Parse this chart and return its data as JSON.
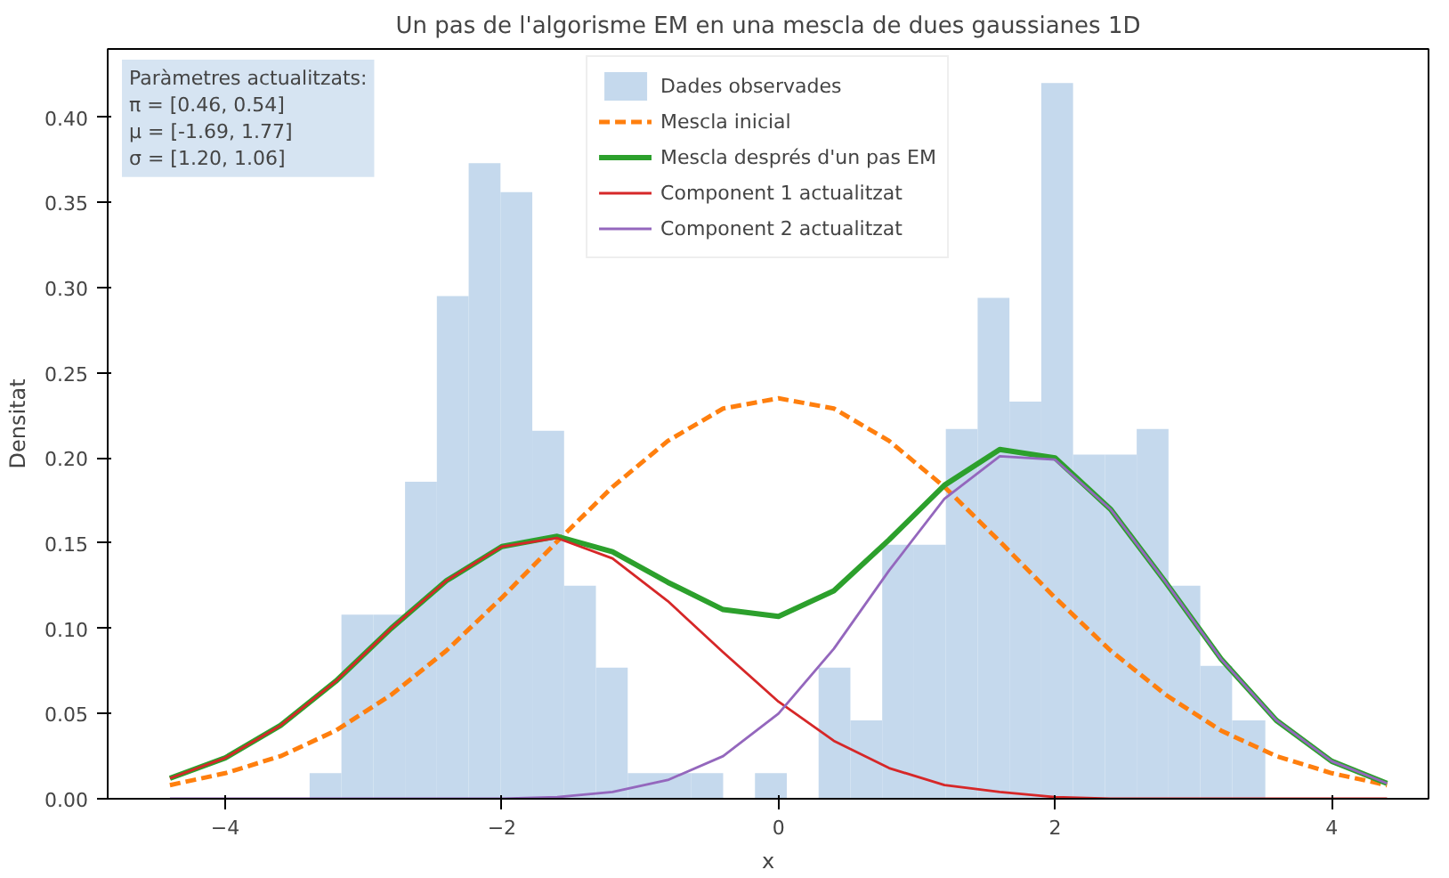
{
  "chart_data": {
    "type": "histogram",
    "title": "Un pas de l'algorisme EM en una mescla de dues gaussianes 1D",
    "xlabel": "x",
    "ylabel": "Densitat",
    "annotations": [
      "Paràmetres actualitzats:\nπ = [0.46, 0.54]\nμ = [-1.69, 1.77]\nσ = [1.20, 1.06]"
    ],
    "xlim": [
      -4.85,
      4.7
    ],
    "ylim": [
      0,
      0.44
    ],
    "xticks": [
      {
        "value": -4,
        "label": "−4"
      },
      {
        "value": -2,
        "label": "−2"
      },
      0,
      2,
      4
    ],
    "yticks": [
      {
        "value": 0,
        "label": "0.00"
      },
      0.05,
      {
        "value": 0.1,
        "label": "0.10"
      },
      0.15,
      {
        "value": 0.2,
        "label": "0.20"
      },
      0.25,
      {
        "value": 0.3,
        "label": "0.30"
      },
      0.35,
      {
        "value": 0.4,
        "label": "0.40"
      }
    ],
    "grid": false,
    "legend": "top",
    "series": [
      {
        "name": "Dades observades",
        "color": "#c5d9ed",
        "bins": [
          -3.39,
          -3.16,
          -2.93,
          -2.7,
          -2.47,
          -2.24,
          -2.01,
          -1.78,
          -1.55,
          -1.32,
          -1.09,
          -0.86,
          -0.63,
          -0.4,
          -0.17,
          0.06,
          0.29,
          0.52,
          0.75,
          0.98,
          1.21,
          1.44,
          1.67,
          1.9,
          2.13,
          2.36,
          2.59,
          2.82,
          3.05,
          3.28,
          3.52
        ],
        "values": [
          0.015,
          0.108,
          0.108,
          0.186,
          0.295,
          0.373,
          0.356,
          0.216,
          0.125,
          0.077,
          0.015,
          0.015,
          0.015,
          0,
          0.015,
          0,
          0.077,
          0.046,
          0.149,
          0.149,
          0.217,
          0.294,
          0.233,
          0.42,
          0.202,
          0.202,
          0.217,
          0.125,
          0.078,
          0.046
        ]
      },
      {
        "type": "line",
        "name": "Mescla inicial",
        "color": "#ff7f0e",
        "line_style": "dashed",
        "x": [
          -4.4,
          -4.0,
          -3.6,
          -3.2,
          -2.8,
          -2.4,
          -2.0,
          -1.6,
          -1.2,
          -0.8,
          -0.4,
          0,
          0.4,
          0.8,
          1.2,
          1.6,
          2.0,
          2.4,
          2.8,
          3.2,
          3.6,
          4.0,
          4.4
        ],
        "values": [
          0.008,
          0.015,
          0.025,
          0.04,
          0.061,
          0.087,
          0.118,
          0.151,
          0.183,
          0.21,
          0.229,
          0.235,
          0.229,
          0.21,
          0.183,
          0.151,
          0.118,
          0.087,
          0.061,
          0.04,
          0.025,
          0.015,
          0.008
        ]
      },
      {
        "type": "line",
        "name": "Mescla després d'un pas EM",
        "color": "#2ca02c",
        "line_style": "solid",
        "x": [
          -4.4,
          -4.0,
          -3.6,
          -3.2,
          -2.8,
          -2.4,
          -2.0,
          -1.6,
          -1.2,
          -0.8,
          -0.4,
          0,
          0.4,
          0.8,
          1.2,
          1.6,
          2.0,
          2.4,
          2.8,
          3.2,
          3.6,
          4.0,
          4.4
        ],
        "values": [
          0.012,
          0.024,
          0.043,
          0.069,
          0.1,
          0.128,
          0.148,
          0.154,
          0.145,
          0.127,
          0.111,
          0.107,
          0.122,
          0.152,
          0.184,
          0.205,
          0.2,
          0.17,
          0.127,
          0.082,
          0.046,
          0.022,
          0.009
        ]
      },
      {
        "type": "line",
        "name": "Component 1 actualitzat",
        "color": "#d62728",
        "line_style": "solid",
        "x": [
          -4.4,
          -4.0,
          -3.6,
          -3.2,
          -2.8,
          -2.4,
          -2.0,
          -1.6,
          -1.2,
          -0.8,
          -0.4,
          0,
          0.4,
          0.8,
          1.2,
          1.6,
          2.0,
          2.4,
          2.8,
          3.2,
          3.6,
          4.0,
          4.4
        ],
        "values": [
          0.012,
          0.024,
          0.043,
          0.069,
          0.1,
          0.128,
          0.148,
          0.153,
          0.141,
          0.116,
          0.086,
          0.057,
          0.034,
          0.018,
          0.008,
          0.004,
          0.001,
          0,
          0,
          0,
          0,
          0,
          0
        ]
      },
      {
        "type": "line",
        "name": "Component 2 actualitzat",
        "color": "#9467bd",
        "line_style": "solid",
        "x": [
          -4.4,
          -4.0,
          -3.6,
          -3.2,
          -2.8,
          -2.4,
          -2.0,
          -1.6,
          -1.2,
          -0.8,
          -0.4,
          0,
          0.4,
          0.8,
          1.2,
          1.6,
          2.0,
          2.4,
          2.8,
          3.2,
          3.6,
          4.0,
          4.4
        ],
        "values": [
          0,
          0,
          0,
          0,
          0,
          0,
          0,
          0.001,
          0.004,
          0.011,
          0.025,
          0.05,
          0.088,
          0.134,
          0.176,
          0.201,
          0.199,
          0.17,
          0.127,
          0.082,
          0.046,
          0.022,
          0.009
        ]
      }
    ]
  }
}
